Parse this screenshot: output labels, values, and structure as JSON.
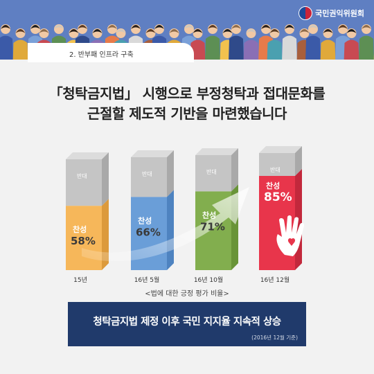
{
  "header": {
    "organization": "국민권익위원회",
    "section_label": "2. 반부패 인프라 구축"
  },
  "headline": {
    "line1": "「청탁금지법」 시행으로 부정청탁과 접대문화를",
    "line2": "근절할 제도적 기반을 마련했습니다"
  },
  "chart_data": {
    "type": "bar",
    "categories": [
      "15년",
      "16년 5월",
      "16년 10월",
      "16년 12월"
    ],
    "series": [
      {
        "name": "찬성",
        "values": [
          58,
          66,
          71,
          85
        ]
      },
      {
        "name": "반대",
        "values": [
          42,
          34,
          29,
          15
        ]
      }
    ],
    "value_labels": [
      "58%",
      "66%",
      "71%",
      "85%"
    ],
    "ylim": [
      0,
      100
    ],
    "colors": {
      "support": [
        "#f6b75a",
        "#6a9ed8",
        "#82ae4e",
        "#e8354b"
      ],
      "support_side": [
        "#dc9a3c",
        "#4e83c0",
        "#699438",
        "#c2283c"
      ],
      "oppose": "#c5c5c5",
      "oppose_side": "#a9a9a9",
      "top": "#dcdcdc"
    },
    "caption": "<법에 대한 긍정 평가 비율>",
    "icon": "hand-heart-icon"
  },
  "banner": {
    "title": "청탁금지법 제정 이후 국민 지지율 지속적 상승",
    "note": "(2016년 12월 기준)"
  }
}
